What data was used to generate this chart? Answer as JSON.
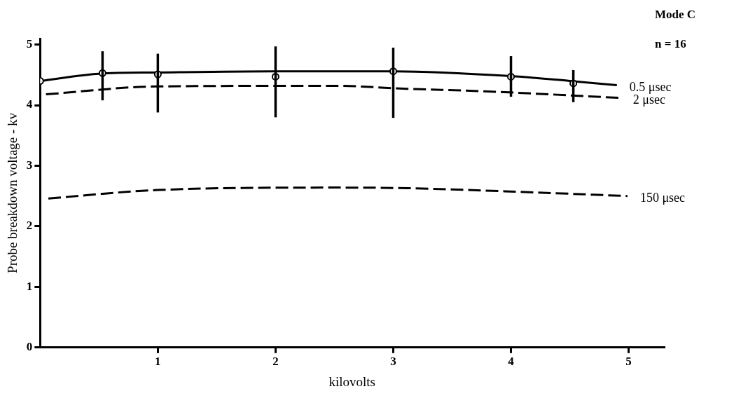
{
  "chart_data": {
    "type": "line",
    "xlabel": "kilovolts",
    "ylabel": "Probe breakdown voltage - kv",
    "annotations": [
      "Mode C",
      "n = 16"
    ],
    "xlim": [
      0,
      5.3
    ],
    "xticks": [
      1,
      2,
      3,
      4,
      5
    ],
    "ylim": [
      0,
      5.1
    ],
    "yticks": [
      0,
      1,
      2,
      3,
      4,
      5
    ],
    "grid": false,
    "legend": false,
    "series": [
      {
        "name": "0.5 μsec",
        "color": "#000000",
        "line_style": "solid",
        "marker": "none",
        "x": [
          0,
          0.5,
          1,
          2,
          3,
          4,
          4.5,
          4.9
        ],
        "values": [
          4.4,
          4.52,
          4.54,
          4.56,
          4.56,
          4.48,
          4.4,
          4.33
        ]
      },
      {
        "type": "scatter",
        "color": "#000000",
        "marker": "circle",
        "x": [
          0,
          0.53,
          1,
          2,
          3,
          4,
          4.53
        ],
        "values": [
          4.4,
          4.53,
          4.51,
          4.47,
          4.56,
          4.47,
          4.36
        ],
        "errors": [
          null,
          [
            4.08,
            4.89
          ],
          [
            3.88,
            4.85
          ],
          [
            3.8,
            4.97
          ],
          [
            3.79,
            4.95
          ],
          [
            4.14,
            4.81
          ],
          [
            4.05,
            4.58
          ]
        ]
      },
      {
        "name": "2 μsec",
        "color": "#000000",
        "line_style": "dashed",
        "marker": "none",
        "x": [
          0.05,
          1,
          2.5,
          3.12,
          3.76,
          4.93
        ],
        "values": [
          4.18,
          4.31,
          4.32,
          4.27,
          4.23,
          4.12
        ]
      },
      {
        "name": "150 μsec",
        "color": "#000000",
        "line_style": "dashed",
        "marker": "none",
        "x": [
          0.07,
          1,
          2.5,
          3.12,
          4.2,
          4.99
        ],
        "values": [
          2.46,
          2.6,
          2.64,
          2.63,
          2.56,
          2.5
        ]
      }
    ]
  }
}
